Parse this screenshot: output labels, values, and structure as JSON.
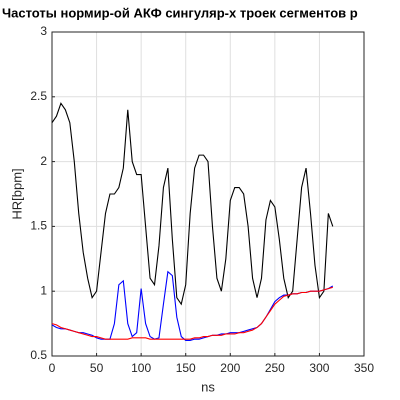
{
  "chart_data": {
    "type": "line",
    "title": "Частоты нормир-ой АКФ сингуляр-х троек сегментов р",
    "x_label": "ns",
    "y_label": "HR[bpm]",
    "x": [
      0,
      5,
      10,
      15,
      20,
      25,
      30,
      35,
      40,
      45,
      50,
      55,
      60,
      65,
      70,
      75,
      80,
      85,
      90,
      95,
      100,
      105,
      110,
      115,
      120,
      125,
      130,
      135,
      140,
      145,
      150,
      155,
      160,
      165,
      170,
      175,
      180,
      185,
      190,
      195,
      200,
      205,
      210,
      215,
      220,
      225,
      230,
      235,
      240,
      245,
      250,
      255,
      260,
      265,
      270,
      275,
      280,
      285,
      290,
      295,
      300,
      305,
      310,
      315
    ],
    "series": [
      {
        "color": "#000000",
        "values": [
          2.3,
          2.35,
          2.45,
          2.4,
          2.3,
          2.0,
          1.6,
          1.3,
          1.1,
          0.95,
          1.0,
          1.3,
          1.6,
          1.75,
          1.75,
          1.8,
          1.95,
          2.4,
          2.0,
          1.9,
          1.9,
          1.5,
          1.1,
          1.05,
          1.35,
          1.8,
          1.95,
          1.4,
          0.95,
          0.9,
          1.05,
          1.6,
          1.95,
          2.05,
          2.05,
          2.0,
          1.5,
          1.1,
          1.0,
          1.25,
          1.7,
          1.8,
          1.8,
          1.75,
          1.5,
          1.1,
          0.95,
          1.1,
          1.55,
          1.7,
          1.65,
          1.4,
          1.1,
          0.95,
          1.0,
          1.4,
          1.8,
          1.95,
          1.6,
          1.2,
          0.95,
          1.0,
          1.6,
          1.5
        ]
      },
      {
        "color": "#0000ff",
        "values": [
          0.74,
          0.72,
          0.71,
          0.71,
          0.7,
          0.69,
          0.68,
          0.68,
          0.67,
          0.66,
          0.64,
          0.63,
          0.63,
          0.63,
          0.75,
          1.05,
          1.08,
          0.75,
          0.65,
          0.68,
          1.02,
          0.75,
          0.65,
          0.63,
          0.64,
          0.9,
          1.15,
          1.12,
          0.8,
          0.65,
          0.62,
          0.62,
          0.63,
          0.63,
          0.64,
          0.65,
          0.66,
          0.66,
          0.67,
          0.67,
          0.68,
          0.68,
          0.68,
          0.69,
          0.7,
          0.71,
          0.72,
          0.75,
          0.8,
          0.86,
          0.92,
          0.95,
          0.97,
          0.97,
          0.98,
          0.98,
          0.99,
          0.99,
          1.0,
          1.0,
          1.0,
          1.01,
          1.02,
          1.04
        ]
      },
      {
        "color": "#ff0000",
        "values": [
          0.75,
          0.74,
          0.72,
          0.71,
          0.7,
          0.69,
          0.68,
          0.67,
          0.66,
          0.65,
          0.65,
          0.64,
          0.63,
          0.63,
          0.63,
          0.63,
          0.63,
          0.63,
          0.64,
          0.64,
          0.64,
          0.64,
          0.63,
          0.63,
          0.63,
          0.63,
          0.63,
          0.63,
          0.63,
          0.63,
          0.63,
          0.63,
          0.64,
          0.64,
          0.65,
          0.65,
          0.66,
          0.66,
          0.66,
          0.67,
          0.67,
          0.67,
          0.68,
          0.68,
          0.69,
          0.7,
          0.72,
          0.75,
          0.8,
          0.85,
          0.9,
          0.93,
          0.96,
          0.97,
          0.98,
          0.98,
          0.99,
          0.99,
          1.0,
          1.0,
          1.0,
          1.01,
          1.02,
          1.03
        ]
      }
    ],
    "xlim": [
      0,
      350
    ],
    "xticks": [
      0,
      50,
      100,
      150,
      200,
      250,
      300,
      350
    ],
    "ylim": [
      0.5,
      3
    ],
    "yticks": [
      0.5,
      1,
      1.5,
      2,
      2.5,
      3
    ],
    "grid": true
  }
}
